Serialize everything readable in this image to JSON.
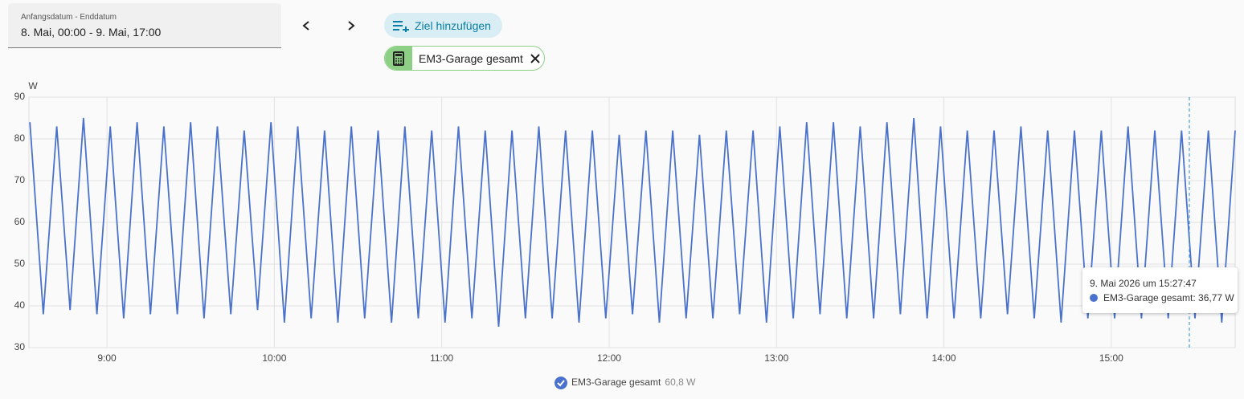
{
  "controls": {
    "date_label": "Anfangsdatum - Enddatum",
    "date_value": "8. Mai, 00:00 - 9. Mai, 17:00",
    "add_target": "Ziel hinzufügen",
    "chip": "EM3-Garage gesamt"
  },
  "chart_data": {
    "type": "line",
    "y_unit": "W",
    "x": [
      8.54,
      8.62,
      8.7,
      8.78,
      8.86,
      8.94,
      9.02,
      9.1,
      9.18,
      9.26,
      9.34,
      9.42,
      9.5,
      9.58,
      9.66,
      9.74,
      9.82,
      9.9,
      9.98,
      10.06,
      10.14,
      10.22,
      10.3,
      10.38,
      10.46,
      10.54,
      10.62,
      10.7,
      10.78,
      10.86,
      10.94,
      11.02,
      11.1,
      11.18,
      11.26,
      11.34,
      11.42,
      11.5,
      11.58,
      11.66,
      11.74,
      11.82,
      11.9,
      11.98,
      12.06,
      12.14,
      12.22,
      12.3,
      12.38,
      12.46,
      12.54,
      12.62,
      12.7,
      12.78,
      12.86,
      12.94,
      13.02,
      13.1,
      13.18,
      13.26,
      13.34,
      13.42,
      13.5,
      13.58,
      13.66,
      13.74,
      13.82,
      13.9,
      13.98,
      14.06,
      14.14,
      14.22,
      14.3,
      14.38,
      14.46,
      14.54,
      14.62,
      14.7,
      14.78,
      14.86,
      14.94,
      15.02,
      15.1,
      15.18,
      15.26,
      15.34,
      15.42,
      15.5,
      15.58,
      15.66,
      15.74
    ],
    "series": [
      {
        "name": "EM3-Garage gesamt",
        "color": "#4a72cc",
        "values": [
          84,
          38,
          83,
          39,
          85,
          38,
          83,
          37,
          84,
          38,
          83,
          38,
          84,
          37,
          83,
          38,
          82,
          39,
          84,
          36,
          83,
          37,
          82,
          36,
          83,
          37,
          82,
          36,
          83,
          37,
          82,
          36,
          83,
          37,
          82,
          35,
          82,
          37,
          83,
          37,
          82,
          36,
          82,
          37,
          81,
          38,
          82,
          36,
          82,
          37,
          81,
          37,
          82,
          38,
          82,
          36,
          83,
          37,
          84,
          38,
          84,
          37,
          83,
          37,
          84,
          38,
          85,
          37,
          83,
          37,
          82,
          37,
          82,
          38,
          83,
          37,
          82,
          36,
          82,
          37,
          82,
          37,
          83,
          37,
          82,
          37,
          82,
          37,
          82,
          36,
          82
        ]
      }
    ],
    "legend_value": "60,8 W",
    "tooltip": {
      "time": "9. Mai 2026 um 15:27:47",
      "text": "EM3-Garage gesamt: 36,77 W"
    },
    "xlim": [
      8.534,
      15.74
    ],
    "xticks": [
      {
        "value": 9,
        "label": "9:00"
      },
      {
        "value": 10,
        "label": "10:00"
      },
      {
        "value": 11,
        "label": "11:00"
      },
      {
        "value": 12,
        "label": "12:00"
      },
      {
        "value": 13,
        "label": "13:00"
      },
      {
        "value": 14,
        "label": "14:00"
      },
      {
        "value": 15,
        "label": "15:00"
      }
    ],
    "ylim": [
      30,
      90
    ],
    "yticks": [
      30,
      40,
      50,
      60,
      70,
      80,
      90
    ],
    "grid": true
  }
}
